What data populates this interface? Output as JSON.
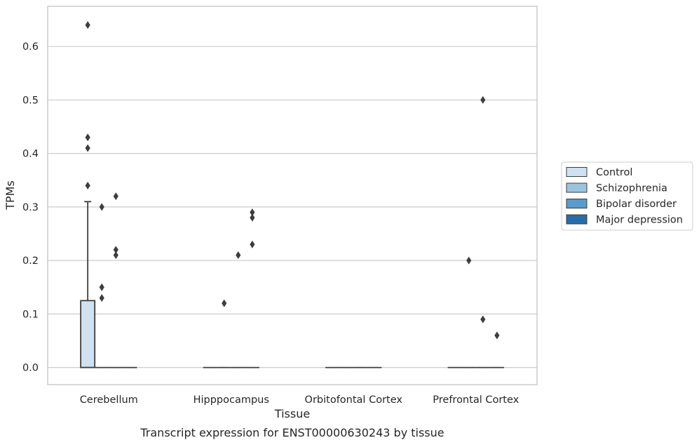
{
  "caption": "Transcript expression for ENST00000630243 by tissue",
  "chart_data": {
    "type": "box",
    "xlabel": "Tissue",
    "ylabel": "TPMs",
    "ylim": [
      -0.032,
      0.675
    ],
    "yticks": [
      0.0,
      0.1,
      0.2,
      0.3,
      0.4,
      0.5,
      0.6
    ],
    "ytick_labels": [
      "0.0",
      "0.1",
      "0.2",
      "0.3",
      "0.4",
      "0.5",
      "0.6"
    ],
    "grid": "horizontal",
    "legend_position": "right",
    "categories": [
      "Cerebellum",
      "Hipppocampus",
      "Orbitofontal Cortex",
      "Prefrontal Cortex"
    ],
    "series": [
      {
        "name": "Control",
        "color": "#d0e1f1",
        "boxes": [
          {
            "q1": 0.0,
            "median": 0.0,
            "q3": 0.125,
            "whisker_low": 0.0,
            "whisker_high": 0.31,
            "outliers": [
              0.64,
              0.43,
              0.41,
              0.34
            ]
          },
          {
            "q1": 0.0,
            "median": 0.0,
            "q3": 0.0,
            "whisker_low": 0.0,
            "whisker_high": 0.0,
            "outliers": []
          },
          {
            "q1": 0.0,
            "median": 0.0,
            "q3": 0.0,
            "whisker_low": 0.0,
            "whisker_high": 0.0,
            "outliers": []
          },
          {
            "q1": 0.0,
            "median": 0.0,
            "q3": 0.0,
            "whisker_low": 0.0,
            "whisker_high": 0.0,
            "outliers": []
          }
        ]
      },
      {
        "name": "Schizophrenia",
        "color": "#9cc5dd",
        "boxes": [
          {
            "q1": 0.0,
            "median": 0.0,
            "q3": 0.0,
            "whisker_low": 0.0,
            "whisker_high": 0.0,
            "outliers": [
              0.3,
              0.15,
              0.13
            ]
          },
          {
            "q1": 0.0,
            "median": 0.0,
            "q3": 0.0,
            "whisker_low": 0.0,
            "whisker_high": 0.0,
            "outliers": [
              0.12
            ]
          },
          {
            "q1": 0.0,
            "median": 0.0,
            "q3": 0.0,
            "whisker_low": 0.0,
            "whisker_high": 0.0,
            "outliers": []
          },
          {
            "q1": 0.0,
            "median": 0.0,
            "q3": 0.0,
            "whisker_low": 0.0,
            "whisker_high": 0.0,
            "outliers": [
              0.2
            ]
          }
        ]
      },
      {
        "name": "Bipolar disorder",
        "color": "#5a9bc9",
        "boxes": [
          {
            "q1": 0.0,
            "median": 0.0,
            "q3": 0.0,
            "whisker_low": 0.0,
            "whisker_high": 0.0,
            "outliers": [
              0.32,
              0.22,
              0.21
            ]
          },
          {
            "q1": 0.0,
            "median": 0.0,
            "q3": 0.0,
            "whisker_low": 0.0,
            "whisker_high": 0.0,
            "outliers": [
              0.21
            ]
          },
          {
            "q1": 0.0,
            "median": 0.0,
            "q3": 0.0,
            "whisker_low": 0.0,
            "whisker_high": 0.0,
            "outliers": []
          },
          {
            "q1": 0.0,
            "median": 0.0,
            "q3": 0.0,
            "whisker_low": 0.0,
            "whisker_high": 0.0,
            "outliers": [
              0.5,
              0.09
            ]
          }
        ]
      },
      {
        "name": "Major depression",
        "color": "#2a6ca8",
        "boxes": [
          {
            "q1": 0.0,
            "median": 0.0,
            "q3": 0.0,
            "whisker_low": 0.0,
            "whisker_high": 0.0,
            "outliers": []
          },
          {
            "q1": 0.0,
            "median": 0.0,
            "q3": 0.0,
            "whisker_low": 0.0,
            "whisker_high": 0.0,
            "outliers": [
              0.28,
              0.23,
              0.29
            ]
          },
          {
            "q1": 0.0,
            "median": 0.0,
            "q3": 0.0,
            "whisker_low": 0.0,
            "whisker_high": 0.0,
            "outliers": []
          },
          {
            "q1": 0.0,
            "median": 0.0,
            "q3": 0.0,
            "whisker_low": 0.0,
            "whisker_high": 0.0,
            "outliers": [
              0.06
            ]
          }
        ]
      }
    ]
  }
}
